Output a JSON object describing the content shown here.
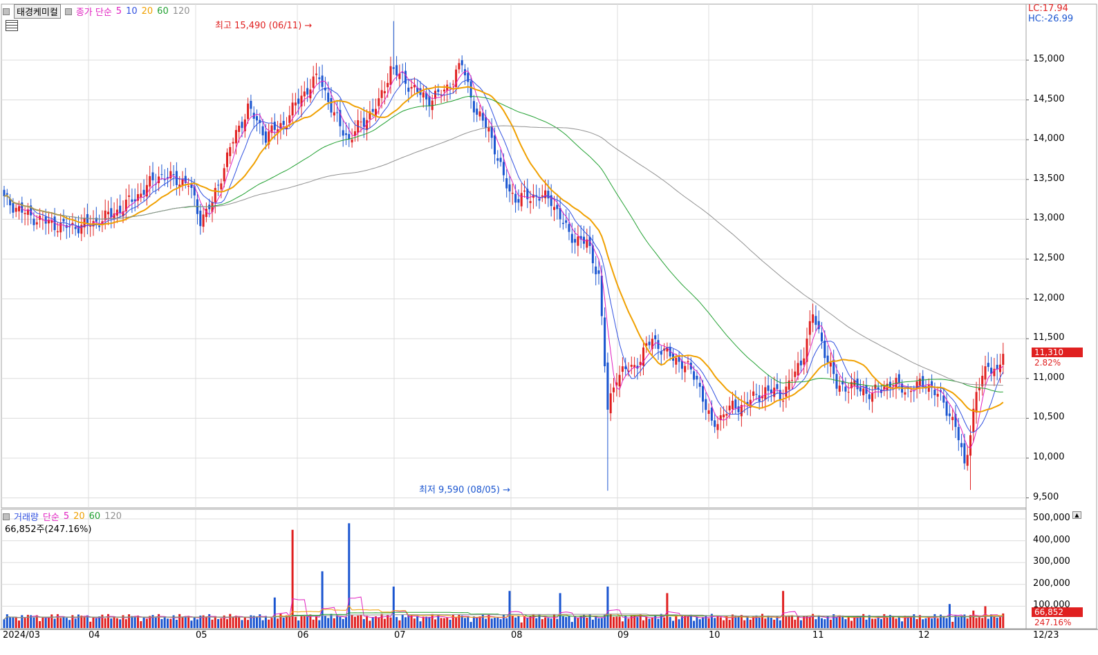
{
  "header": {
    "stock_name": "태경케미컬",
    "price_legend": {
      "label": "종가 단순",
      "ma": [
        "5",
        "10",
        "20",
        "60",
        "120"
      ]
    },
    "lc": "LC:17.94",
    "hc": "HC:-26.99"
  },
  "price_axis": {
    "ticks": [
      "15,000",
      "14,500",
      "14,000",
      "13,500",
      "13,000",
      "12,500",
      "12,000",
      "11,500",
      "11,000",
      "10,500",
      "10,000",
      "9,500"
    ]
  },
  "current": {
    "price": "11,310",
    "change_pct": "2.82%"
  },
  "annotations": {
    "high": "최고 15,490 (06/11)",
    "low": "최저 9,590 (08/05)"
  },
  "volume_legend": {
    "label": "거래량",
    "sub": "단순",
    "ma": [
      "5",
      "20",
      "60",
      "120"
    ],
    "value": "66,852주(247.16%)"
  },
  "volume_axis": {
    "ticks": [
      "500,000",
      "400,000",
      "300,000",
      "200,000",
      "100,000"
    ]
  },
  "volume_current": {
    "value": "66,852",
    "pct": "247.16%"
  },
  "date_axis": {
    "labels": [
      "2024/03",
      "04",
      "05",
      "06",
      "07",
      "08",
      "09",
      "10",
      "11",
      "12"
    ],
    "right": "12/23"
  },
  "colors": {
    "up": "#e02020",
    "down": "#1a55d0",
    "ma5": "#e020c0",
    "ma10": "#3050e0",
    "ma20": "#f0a000",
    "ma60": "#20a030",
    "ma120": "#909090",
    "grid": "#dcdcdc"
  },
  "chart_data": {
    "type": "candlestick",
    "price_range": [
      9500,
      15500
    ],
    "volume_range": [
      0,
      500000
    ],
    "high": {
      "value": 15490,
      "date": "06/11"
    },
    "low": {
      "value": 9590,
      "date": "08/05"
    },
    "last_close": 11310,
    "last_volume": 66852
  }
}
